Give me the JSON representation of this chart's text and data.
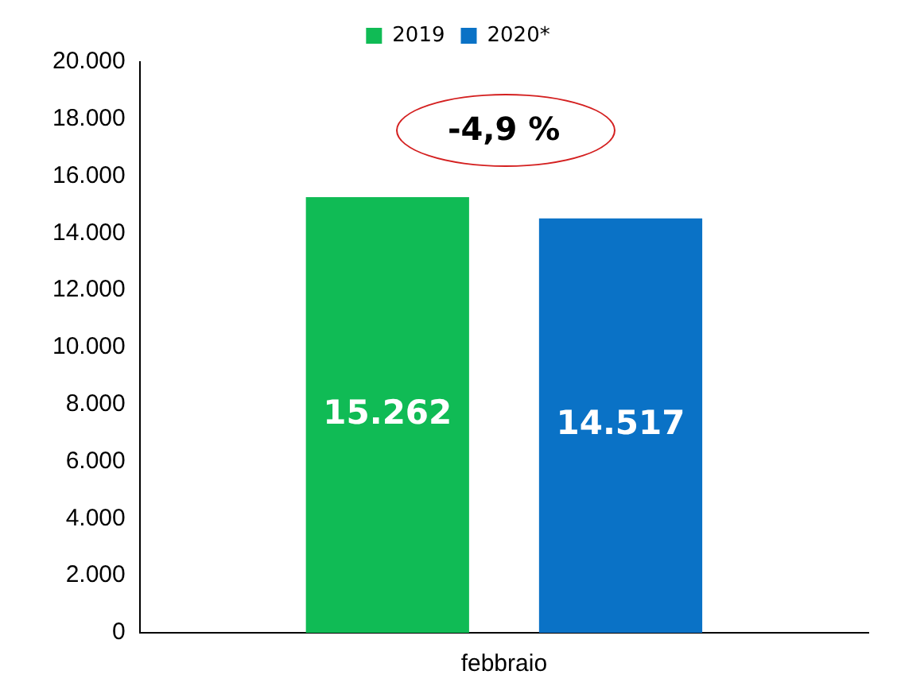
{
  "chart_data": {
    "type": "bar",
    "categories": [
      "febbraio"
    ],
    "series": [
      {
        "name": "2019",
        "color": "#10bb55",
        "values": [
          15262
        ],
        "value_labels": [
          "15.262"
        ]
      },
      {
        "name": "2020*",
        "color": "#0a72c6",
        "values": [
          14517
        ],
        "value_labels": [
          "14.517"
        ]
      }
    ],
    "ylim": [
      0,
      20000
    ],
    "yticks": [
      {
        "value": 0,
        "label": "0"
      },
      {
        "value": 2000,
        "label": "2.000"
      },
      {
        "value": 4000,
        "label": "4.000"
      },
      {
        "value": 6000,
        "label": "6.000"
      },
      {
        "value": 8000,
        "label": "8.000"
      },
      {
        "value": 10000,
        "label": "10.000"
      },
      {
        "value": 12000,
        "label": "12.000"
      },
      {
        "value": 14000,
        "label": "14.000"
      },
      {
        "value": 16000,
        "label": "16.000"
      },
      {
        "value": 18000,
        "label": "18.000"
      },
      {
        "value": 20000,
        "label": "20.000"
      }
    ],
    "annotations": [
      "-4,9 %"
    ],
    "legend": "top",
    "grid": false
  }
}
